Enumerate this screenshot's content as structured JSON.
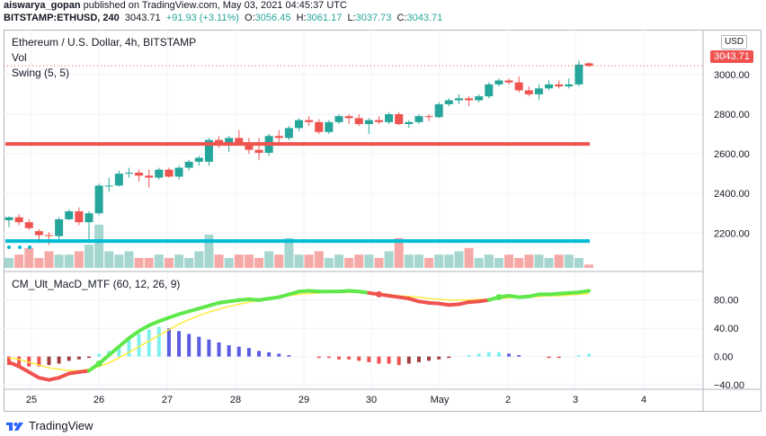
{
  "publisher_line": {
    "user": "aiswarya_gopan",
    "text": "published on TradingView.com, May 03, 2021 04:45:37 UTC"
  },
  "ticker_line": {
    "symbol": "BITSTAMP:ETHUSD, 240",
    "last": "3043.71",
    "change": "+91.93 (+3.11%)",
    "open_label": "O:",
    "open": "3056.45",
    "high_label": "H:",
    "high": "3061.17",
    "low_label": "L:",
    "low": "3037.73",
    "close_label": "C:",
    "close": "3043.71"
  },
  "legend": {
    "title": "Ethereum / U.S. Dollar, 4h, BITSTAMP",
    "vol": "Vol",
    "swing": "Swing (5, 5)",
    "macd": "CM_Ult_MacD_MTF (60, 12, 26, 9)"
  },
  "currency_button": "USD",
  "price_tag": "3043.71",
  "footer": {
    "brand": "TradingView"
  },
  "colors": {
    "up": "#26a69a",
    "up_body": "#26a69a",
    "down": "#ef5350",
    "vol_up": "#a5d6cf",
    "vol_down": "#f5a8a6",
    "support_line": "#f0524f",
    "cyan_line": "#00bcd4",
    "macd_fast_up": "#5ee84a",
    "macd_fast_down": "#f0524f",
    "signal": "#ffeb3b",
    "hist_cyan": "#7ff0ef",
    "hist_blue": "#5b5ce2",
    "hist_red": "#ef5350",
    "hist_maroon": "#a33e3e"
  },
  "chart_data": [
    {
      "type": "candlestick",
      "title": "Ethereum / U.S. Dollar, 4h, BITSTAMP",
      "ylim": [
        2070,
        3140
      ],
      "y_ticks": [
        2200,
        2400,
        2600,
        2800,
        3000
      ],
      "x_tick_labels": [
        "25",
        "26",
        "27",
        "28",
        "29",
        "30",
        "May",
        "2",
        "3",
        "4"
      ],
      "candles": [
        {
          "o": 2265,
          "h": 2285,
          "l": 2230,
          "c": 2280
        },
        {
          "o": 2280,
          "h": 2295,
          "l": 2240,
          "c": 2255
        },
        {
          "o": 2255,
          "h": 2270,
          "l": 2215,
          "c": 2225
        },
        {
          "o": 2210,
          "h": 2220,
          "l": 2150,
          "c": 2190
        },
        {
          "o": 2190,
          "h": 2205,
          "l": 2140,
          "c": 2185
        },
        {
          "o": 2185,
          "h": 2280,
          "l": 2170,
          "c": 2270
        },
        {
          "o": 2270,
          "h": 2320,
          "l": 2265,
          "c": 2310
        },
        {
          "o": 2310,
          "h": 2330,
          "l": 2240,
          "c": 2255
        },
        {
          "o": 2255,
          "h": 2310,
          "l": 2150,
          "c": 2300
        },
        {
          "o": 2300,
          "h": 2450,
          "l": 2290,
          "c": 2440
        },
        {
          "o": 2440,
          "h": 2480,
          "l": 2410,
          "c": 2440
        },
        {
          "o": 2440,
          "h": 2515,
          "l": 2435,
          "c": 2500
        },
        {
          "o": 2500,
          "h": 2530,
          "l": 2480,
          "c": 2505
        },
        {
          "o": 2505,
          "h": 2520,
          "l": 2460,
          "c": 2490
        },
        {
          "o": 2490,
          "h": 2520,
          "l": 2430,
          "c": 2480
        },
        {
          "o": 2480,
          "h": 2530,
          "l": 2470,
          "c": 2520
        },
        {
          "o": 2520,
          "h": 2530,
          "l": 2480,
          "c": 2485
        },
        {
          "o": 2485,
          "h": 2540,
          "l": 2470,
          "c": 2530
        },
        {
          "o": 2530,
          "h": 2570,
          "l": 2515,
          "c": 2560
        },
        {
          "o": 2560,
          "h": 2590,
          "l": 2540,
          "c": 2580
        },
        {
          "o": 2560,
          "h": 2680,
          "l": 2540,
          "c": 2670
        },
        {
          "o": 2670,
          "h": 2690,
          "l": 2630,
          "c": 2650
        },
        {
          "o": 2650,
          "h": 2690,
          "l": 2610,
          "c": 2680
        },
        {
          "o": 2680,
          "h": 2720,
          "l": 2640,
          "c": 2650
        },
        {
          "o": 2650,
          "h": 2680,
          "l": 2600,
          "c": 2620
        },
        {
          "o": 2620,
          "h": 2680,
          "l": 2570,
          "c": 2605
        },
        {
          "o": 2605,
          "h": 2700,
          "l": 2590,
          "c": 2690
        },
        {
          "o": 2690,
          "h": 2720,
          "l": 2660,
          "c": 2680
        },
        {
          "o": 2680,
          "h": 2740,
          "l": 2670,
          "c": 2730
        },
        {
          "o": 2730,
          "h": 2780,
          "l": 2715,
          "c": 2770
        },
        {
          "o": 2770,
          "h": 2790,
          "l": 2740,
          "c": 2760
        },
        {
          "o": 2760,
          "h": 2775,
          "l": 2700,
          "c": 2710
        },
        {
          "o": 2710,
          "h": 2770,
          "l": 2700,
          "c": 2760
        },
        {
          "o": 2760,
          "h": 2800,
          "l": 2750,
          "c": 2790
        },
        {
          "o": 2790,
          "h": 2800,
          "l": 2750,
          "c": 2780
        },
        {
          "o": 2780,
          "h": 2800,
          "l": 2740,
          "c": 2750
        },
        {
          "o": 2750,
          "h": 2780,
          "l": 2700,
          "c": 2770
        },
        {
          "o": 2770,
          "h": 2790,
          "l": 2750,
          "c": 2760
        },
        {
          "o": 2760,
          "h": 2810,
          "l": 2750,
          "c": 2800
        },
        {
          "o": 2800,
          "h": 2810,
          "l": 2745,
          "c": 2750
        },
        {
          "o": 2750,
          "h": 2770,
          "l": 2730,
          "c": 2760
        },
        {
          "o": 2760,
          "h": 2800,
          "l": 2750,
          "c": 2790
        },
        {
          "o": 2790,
          "h": 2800,
          "l": 2765,
          "c": 2785
        },
        {
          "o": 2785,
          "h": 2860,
          "l": 2780,
          "c": 2850
        },
        {
          "o": 2850,
          "h": 2880,
          "l": 2840,
          "c": 2870
        },
        {
          "o": 2870,
          "h": 2900,
          "l": 2850,
          "c": 2880
        },
        {
          "o": 2880,
          "h": 2890,
          "l": 2840,
          "c": 2870
        },
        {
          "o": 2870,
          "h": 2900,
          "l": 2860,
          "c": 2890
        },
        {
          "o": 2890,
          "h": 2960,
          "l": 2880,
          "c": 2950
        },
        {
          "o": 2950,
          "h": 2980,
          "l": 2940,
          "c": 2970
        },
        {
          "o": 2970,
          "h": 2980,
          "l": 2950,
          "c": 2960
        },
        {
          "o": 2960,
          "h": 2990,
          "l": 2910,
          "c": 2920
        },
        {
          "o": 2920,
          "h": 2940,
          "l": 2890,
          "c": 2900
        },
        {
          "o": 2900,
          "h": 2950,
          "l": 2870,
          "c": 2930
        },
        {
          "o": 2930,
          "h": 2970,
          "l": 2920,
          "c": 2950
        },
        {
          "o": 2950,
          "h": 2970,
          "l": 2930,
          "c": 2940
        },
        {
          "o": 2940,
          "h": 2980,
          "l": 2930,
          "c": 2950
        },
        {
          "o": 2950,
          "h": 3070,
          "l": 2940,
          "c": 3050
        },
        {
          "o": 3056.45,
          "h": 3061.17,
          "l": 3037.73,
          "c": 3043.71
        }
      ],
      "volume": [
        3,
        4,
        6,
        3,
        5,
        4,
        4,
        5,
        7,
        13,
        5,
        4,
        5,
        3,
        3,
        4,
        3,
        4,
        3,
        5,
        10,
        4,
        3,
        4,
        4,
        3,
        5,
        4,
        9,
        4,
        4,
        5,
        3,
        4,
        3,
        4,
        4,
        3,
        5,
        9,
        4,
        4,
        3,
        4,
        4,
        5,
        6,
        3,
        4,
        3,
        4,
        3,
        4,
        4,
        3,
        4,
        4,
        3,
        1
      ],
      "horizontal_lines": [
        {
          "y": 2650,
          "color": "#f0524f"
        },
        {
          "y": 2160,
          "color": "#00bcd4"
        }
      ]
    },
    {
      "type": "line",
      "title": "CM_Ult_MacD_MTF (60, 12, 26, 9)",
      "ylim": [
        -45,
        100
      ],
      "y_ticks": [
        80,
        40,
        0,
        -40
      ],
      "series": [
        {
          "values": [
            -8,
            -14,
            -22,
            -30,
            -33,
            -30,
            -24,
            -22,
            -20,
            -10,
            2,
            14,
            26,
            36,
            44,
            50,
            55,
            60,
            64,
            68,
            72,
            76,
            78,
            80,
            81,
            80,
            82,
            84,
            88,
            92,
            93,
            92,
            92,
            92,
            93,
            92,
            90,
            88,
            86,
            84,
            82,
            78,
            76,
            75,
            73,
            74,
            77,
            78,
            80,
            84,
            86,
            84,
            85,
            88,
            88,
            89,
            90,
            91,
            93
          ]
        },
        {
          "values": [
            -2,
            -4,
            -8,
            -12,
            -16,
            -18,
            -20,
            -20,
            -18,
            -14,
            -9,
            -2,
            6,
            14,
            22,
            30,
            38,
            46,
            52,
            58,
            63,
            67,
            71,
            74,
            77,
            80,
            82,
            84,
            86,
            88,
            89,
            90,
            91,
            91,
            91,
            91,
            90,
            90,
            88,
            86,
            85,
            84,
            82,
            81,
            80,
            80,
            80,
            81,
            81,
            82,
            83,
            84,
            84,
            85,
            86,
            86,
            87,
            88,
            89
          ]
        }
      ],
      "histogram": [
        -12,
        -14,
        -14,
        -14,
        -12,
        -10,
        -6,
        -4,
        -2,
        4,
        8,
        16,
        24,
        32,
        38,
        42,
        40,
        36,
        32,
        28,
        24,
        20,
        16,
        14,
        12,
        8,
        6,
        4,
        2,
        0,
        0,
        -2,
        -2,
        -4,
        -4,
        -6,
        -8,
        -10,
        -10,
        -12,
        -10,
        -8,
        -6,
        -4,
        -2,
        0,
        2,
        4,
        6,
        6,
        4,
        2,
        0,
        0,
        -2,
        -2,
        0,
        2,
        4
      ],
      "x_tick_labels": [
        "25",
        "26",
        "27",
        "28",
        "29",
        "30",
        "May",
        "2",
        "3",
        "4"
      ]
    }
  ]
}
